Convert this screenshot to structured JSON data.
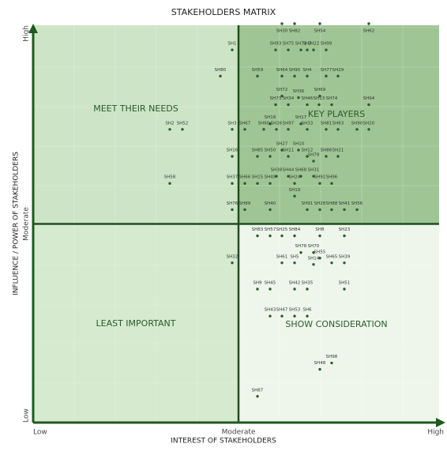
{
  "chart_data": {
    "type": "scatter",
    "title": "STAKEHOLDERS MATRIX",
    "x_label": "INTEREST OF STAKEHOLDERS",
    "y_label": "INFLUENCE / POWER OF STAKEHOLDERS",
    "xlim": [
      0,
      520
    ],
    "ylim": [
      0,
      500
    ],
    "xticks": [
      {
        "value": 0,
        "label": "Low"
      },
      {
        "value": 260,
        "label": "Moderate"
      },
      {
        "value": 520,
        "label": "High"
      }
    ],
    "yticks": [
      {
        "value": 0,
        "label": "Low"
      },
      {
        "value": 250,
        "label": "Moderate"
      },
      {
        "value": 500,
        "label": "High"
      }
    ],
    "quadrants": [
      {
        "name": "MEET THEIR NEEDS",
        "color": "#cde5c6"
      },
      {
        "name": "KEY PLAYERS",
        "color": "#9fc594"
      },
      {
        "name": "LEAST IMPORTANT",
        "color": "#d5eacf"
      },
      {
        "name": "SHOW CONSIDERATION",
        "color": "#eef6eb"
      }
    ],
    "color": "#2d5a2d",
    "labels": [
      "SH30",
      "SH82",
      "SH54",
      "SH62",
      "SH1",
      "SH93",
      "SH75",
      "SH71",
      "SH7",
      "SH22",
      "SH99",
      "SH80",
      "SH59",
      "SH64",
      "SH95",
      "SH4",
      "SH77",
      "SH29",
      "SH72",
      "SH36",
      "SH69",
      "SH73",
      "SH34",
      "SH46",
      "SH13",
      "SH74",
      "SH94",
      "SH18",
      "SH17",
      "SH2",
      "SH52",
      "SH3",
      "SH67",
      "SH60",
      "SH26",
      "SH97",
      "SH33",
      "SH81",
      "SH63",
      "SH90",
      "SH20",
      "SH27",
      "SH10",
      "SH16",
      "SH85",
      "SH50",
      "SH11",
      "SH12",
      "SH86",
      "SH21",
      "SH79",
      "SH38",
      "SH44",
      "SH68",
      "SH31",
      "SH58",
      "SH37",
      "SH66",
      "SH15",
      "SH49",
      "SH24",
      "SH92",
      "SH96",
      "SH19",
      "SH76",
      "SH89",
      "SH40",
      "SH91",
      "SH28",
      "SH88",
      "SH41",
      "SH56",
      "SH83",
      "SH57",
      "SH25",
      "SH84",
      "SH8",
      "SH23",
      "SH78",
      "SH70",
      "SH55",
      "SH61",
      "SH5",
      "SH65",
      "SH39",
      "SH14",
      "SH32",
      "SH9",
      "SH45",
      "SH42",
      "SH35",
      "SH51",
      "SH43",
      "SH47",
      "SH53",
      "SH6",
      "SH48",
      "SH98",
      "SH87"
    ],
    "x": [
      315,
      331,
      363,
      425,
      252,
      307,
      323,
      339,
      347,
      355,
      371,
      237,
      284,
      315,
      331,
      347,
      371,
      386,
      315,
      336,
      363,
      307,
      323,
      347,
      362,
      378,
      425,
      300,
      339,
      173,
      189,
      252,
      268,
      292,
      308,
      323,
      347,
      371,
      386,
      410,
      425,
      315,
      336,
      252,
      284,
      300,
      323,
      347,
      371,
      386,
      355,
      308,
      323,
      339,
      355,
      173,
      252,
      268,
      284,
      300,
      331,
      363,
      378,
      331,
      252,
      268,
      300,
      347,
      363,
      378,
      394,
      410,
      284,
      300,
      315,
      331,
      363,
      394,
      339,
      355,
      363,
      315,
      331,
      378,
      394,
      355,
      252,
      284,
      300,
      331,
      347,
      394,
      300,
      315,
      331,
      347,
      363,
      378,
      284
    ],
    "values": [
      502,
      502,
      502,
      502,
      469,
      469,
      469,
      469,
      469,
      469,
      469,
      436,
      436,
      436,
      436,
      436,
      436,
      436,
      411,
      409,
      411,
      400,
      400,
      400,
      400,
      400,
      400,
      376,
      376,
      369,
      369,
      369,
      369,
      369,
      369,
      369,
      369,
      369,
      369,
      369,
      369,
      343,
      343,
      335,
      335,
      335,
      335,
      335,
      335,
      335,
      329,
      310,
      310,
      310,
      310,
      301,
      301,
      301,
      301,
      301,
      301,
      301,
      301,
      285,
      268,
      268,
      268,
      268,
      268,
      268,
      268,
      268,
      235,
      235,
      235,
      235,
      235,
      235,
      214,
      214,
      207,
      201,
      201,
      201,
      201,
      199,
      201,
      168,
      168,
      168,
      168,
      168,
      134,
      134,
      134,
      134,
      67,
      75,
      33
    ]
  }
}
